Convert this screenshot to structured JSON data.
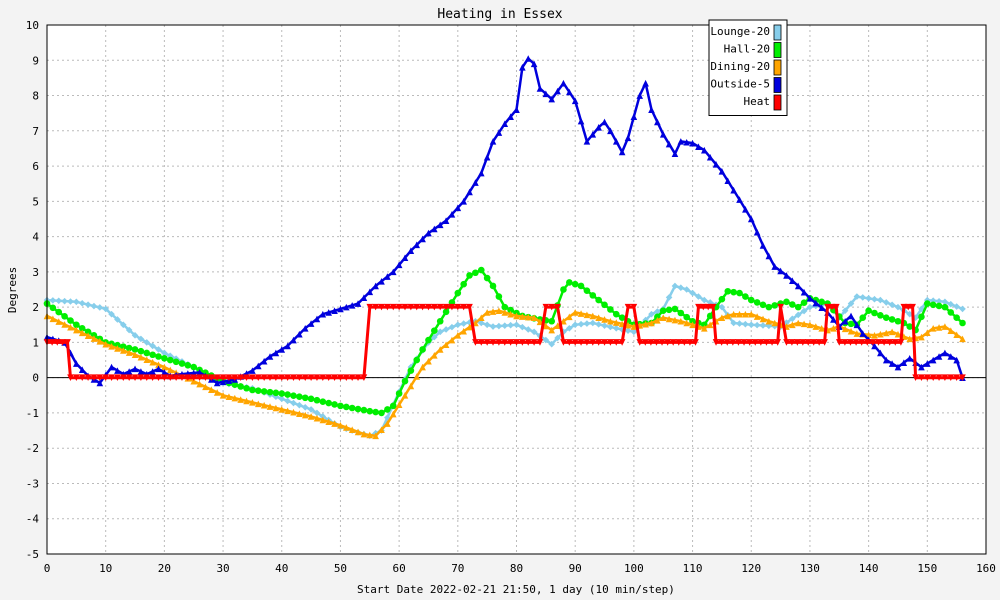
{
  "chart_data": {
    "type": "line",
    "title": "Heating in Essex",
    "xlabel": "Start Date 2022-02-21 21:50, 1 day (10 min/step)",
    "ylabel": "Degrees",
    "xlim": [
      0,
      160
    ],
    "ylim": [
      -5,
      10
    ],
    "xticks": [
      0,
      10,
      20,
      30,
      40,
      50,
      60,
      70,
      80,
      90,
      100,
      110,
      120,
      130,
      140,
      150,
      160
    ],
    "yticks": [
      -5,
      -4,
      -3,
      -2,
      -1,
      0,
      1,
      2,
      3,
      4,
      5,
      6,
      7,
      8,
      9,
      10
    ],
    "grid": true,
    "legend_position": "top-right",
    "series": [
      {
        "name": "Lounge-20",
        "color": "#87ceeb",
        "marker": "diamond",
        "points": [
          [
            0,
            2.2
          ],
          [
            5,
            2.15
          ],
          [
            10,
            1.95
          ],
          [
            15,
            1.2
          ],
          [
            20,
            0.7
          ],
          [
            25,
            0.3
          ],
          [
            30,
            -0.15
          ],
          [
            35,
            -0.3
          ],
          [
            40,
            -0.6
          ],
          [
            45,
            -0.9
          ],
          [
            50,
            -1.4
          ],
          [
            55,
            -1.65
          ],
          [
            57,
            -1.5
          ],
          [
            60,
            -0.4
          ],
          [
            62,
            0.3
          ],
          [
            65,
            1.0
          ],
          [
            67,
            1.3
          ],
          [
            70,
            1.5
          ],
          [
            73,
            1.6
          ],
          [
            76,
            1.45
          ],
          [
            80,
            1.5
          ],
          [
            83,
            1.3
          ],
          [
            86,
            0.95
          ],
          [
            88,
            1.3
          ],
          [
            90,
            1.5
          ],
          [
            93,
            1.55
          ],
          [
            97,
            1.4
          ],
          [
            100,
            1.3
          ],
          [
            103,
            1.8
          ],
          [
            105,
            1.95
          ],
          [
            107,
            2.6
          ],
          [
            109,
            2.5
          ],
          [
            112,
            2.2
          ],
          [
            115,
            2.0
          ],
          [
            117,
            1.55
          ],
          [
            120,
            1.5
          ],
          [
            125,
            1.45
          ],
          [
            130,
            2.0
          ],
          [
            133,
            2.1
          ],
          [
            135,
            1.7
          ],
          [
            138,
            2.3
          ],
          [
            142,
            2.2
          ],
          [
            145,
            2.0
          ],
          [
            148,
            1.7
          ],
          [
            150,
            2.2
          ],
          [
            153,
            2.15
          ],
          [
            156,
            1.95
          ]
        ]
      },
      {
        "name": "Hall-20",
        "color": "#00ee00",
        "marker": "circle",
        "points": [
          [
            0,
            2.1
          ],
          [
            5,
            1.5
          ],
          [
            10,
            1.0
          ],
          [
            15,
            0.8
          ],
          [
            20,
            0.55
          ],
          [
            25,
            0.3
          ],
          [
            30,
            -0.1
          ],
          [
            35,
            -0.35
          ],
          [
            40,
            -0.45
          ],
          [
            45,
            -0.6
          ],
          [
            50,
            -0.8
          ],
          [
            55,
            -0.95
          ],
          [
            57,
            -1.0
          ],
          [
            59,
            -0.8
          ],
          [
            61,
            -0.1
          ],
          [
            64,
            0.8
          ],
          [
            67,
            1.6
          ],
          [
            70,
            2.4
          ],
          [
            72,
            2.9
          ],
          [
            74,
            3.05
          ],
          [
            76,
            2.6
          ],
          [
            78,
            2.0
          ],
          [
            81,
            1.75
          ],
          [
            84,
            1.65
          ],
          [
            86,
            1.6
          ],
          [
            88,
            2.5
          ],
          [
            89,
            2.7
          ],
          [
            91,
            2.6
          ],
          [
            94,
            2.2
          ],
          [
            97,
            1.8
          ],
          [
            100,
            1.5
          ],
          [
            103,
            1.55
          ],
          [
            105,
            1.9
          ],
          [
            107,
            1.95
          ],
          [
            110,
            1.6
          ],
          [
            112,
            1.5
          ],
          [
            114,
            2.0
          ],
          [
            116,
            2.45
          ],
          [
            118,
            2.4
          ],
          [
            120,
            2.2
          ],
          [
            123,
            2.0
          ],
          [
            126,
            2.15
          ],
          [
            128,
            2.0
          ],
          [
            130,
            2.25
          ],
          [
            133,
            2.1
          ],
          [
            136,
            1.55
          ],
          [
            138,
            1.5
          ],
          [
            140,
            1.9
          ],
          [
            143,
            1.7
          ],
          [
            146,
            1.55
          ],
          [
            148,
            1.35
          ],
          [
            150,
            2.1
          ],
          [
            153,
            2.0
          ],
          [
            156,
            1.55
          ]
        ]
      },
      {
        "name": "Dining-20",
        "color": "#ffa500",
        "marker": "triangle",
        "points": [
          [
            0,
            1.75
          ],
          [
            5,
            1.35
          ],
          [
            10,
            0.95
          ],
          [
            15,
            0.65
          ],
          [
            20,
            0.3
          ],
          [
            25,
            -0.1
          ],
          [
            30,
            -0.5
          ],
          [
            35,
            -0.7
          ],
          [
            40,
            -0.9
          ],
          [
            45,
            -1.1
          ],
          [
            50,
            -1.35
          ],
          [
            54,
            -1.6
          ],
          [
            56,
            -1.65
          ],
          [
            58,
            -1.3
          ],
          [
            61,
            -0.5
          ],
          [
            64,
            0.3
          ],
          [
            67,
            0.8
          ],
          [
            70,
            1.2
          ],
          [
            73,
            1.55
          ],
          [
            75,
            1.85
          ],
          [
            77,
            1.9
          ],
          [
            80,
            1.75
          ],
          [
            83,
            1.7
          ],
          [
            86,
            1.35
          ],
          [
            88,
            1.6
          ],
          [
            90,
            1.85
          ],
          [
            93,
            1.75
          ],
          [
            96,
            1.6
          ],
          [
            100,
            1.45
          ],
          [
            103,
            1.55
          ],
          [
            105,
            1.7
          ],
          [
            108,
            1.6
          ],
          [
            112,
            1.4
          ],
          [
            115,
            1.7
          ],
          [
            117,
            1.8
          ],
          [
            120,
            1.8
          ],
          [
            123,
            1.6
          ],
          [
            126,
            1.45
          ],
          [
            128,
            1.55
          ],
          [
            130,
            1.5
          ],
          [
            133,
            1.35
          ],
          [
            135,
            1.45
          ],
          [
            138,
            1.25
          ],
          [
            141,
            1.2
          ],
          [
            144,
            1.3
          ],
          [
            147,
            1.1
          ],
          [
            149,
            1.15
          ],
          [
            151,
            1.4
          ],
          [
            153,
            1.45
          ],
          [
            156,
            1.1
          ]
        ]
      },
      {
        "name": "Outside-5",
        "color": "#0000dd",
        "marker": "triangle",
        "points": [
          [
            0,
            1.15
          ],
          [
            3,
            1.0
          ],
          [
            5,
            0.4
          ],
          [
            7,
            0.05
          ],
          [
            9,
            -0.15
          ],
          [
            11,
            0.3
          ],
          [
            13,
            0.1
          ],
          [
            15,
            0.25
          ],
          [
            17,
            0.1
          ],
          [
            19,
            0.25
          ],
          [
            21,
            0.05
          ],
          [
            23,
            0.1
          ],
          [
            26,
            0.15
          ],
          [
            29,
            -0.15
          ],
          [
            32,
            -0.05
          ],
          [
            35,
            0.2
          ],
          [
            38,
            0.6
          ],
          [
            41,
            0.9
          ],
          [
            44,
            1.4
          ],
          [
            47,
            1.8
          ],
          [
            50,
            1.95
          ],
          [
            53,
            2.1
          ],
          [
            56,
            2.6
          ],
          [
            59,
            3.0
          ],
          [
            62,
            3.6
          ],
          [
            65,
            4.1
          ],
          [
            68,
            4.45
          ],
          [
            71,
            5.0
          ],
          [
            74,
            5.8
          ],
          [
            76,
            6.7
          ],
          [
            78,
            7.2
          ],
          [
            80,
            7.6
          ],
          [
            81,
            8.8
          ],
          [
            82,
            9.05
          ],
          [
            83,
            8.9
          ],
          [
            84,
            8.2
          ],
          [
            86,
            7.9
          ],
          [
            88,
            8.35
          ],
          [
            90,
            7.85
          ],
          [
            92,
            6.7
          ],
          [
            94,
            7.1
          ],
          [
            95,
            7.25
          ],
          [
            96,
            7.0
          ],
          [
            98,
            6.4
          ],
          [
            99,
            6.8
          ],
          [
            101,
            8.0
          ],
          [
            102,
            8.35
          ],
          [
            103,
            7.6
          ],
          [
            105,
            6.9
          ],
          [
            107,
            6.35
          ],
          [
            108,
            6.7
          ],
          [
            110,
            6.65
          ],
          [
            112,
            6.45
          ],
          [
            115,
            5.85
          ],
          [
            118,
            5.05
          ],
          [
            120,
            4.5
          ],
          [
            122,
            3.75
          ],
          [
            124,
            3.15
          ],
          [
            126,
            2.9
          ],
          [
            128,
            2.6
          ],
          [
            130,
            2.25
          ],
          [
            133,
            1.85
          ],
          [
            135,
            1.45
          ],
          [
            137,
            1.75
          ],
          [
            139,
            1.25
          ],
          [
            141,
            0.9
          ],
          [
            143,
            0.5
          ],
          [
            145,
            0.3
          ],
          [
            147,
            0.55
          ],
          [
            149,
            0.3
          ],
          [
            151,
            0.5
          ],
          [
            153,
            0.7
          ],
          [
            155,
            0.5
          ],
          [
            156,
            0.0
          ]
        ]
      },
      {
        "name": "Heat",
        "color": "#ff0000",
        "marker": "triangle-down",
        "points": [
          [
            0,
            1
          ],
          [
            3.5,
            1
          ],
          [
            4,
            0
          ],
          [
            54,
            0
          ],
          [
            55,
            2
          ],
          [
            72,
            2
          ],
          [
            73,
            1
          ],
          [
            84,
            1
          ],
          [
            85,
            2
          ],
          [
            87,
            2
          ],
          [
            88,
            1
          ],
          [
            98,
            1
          ],
          [
            99,
            2
          ],
          [
            100,
            2
          ],
          [
            101,
            1
          ],
          [
            110.5,
            1
          ],
          [
            111,
            2
          ],
          [
            113.5,
            2
          ],
          [
            114,
            1
          ],
          [
            124.5,
            1
          ],
          [
            125,
            2
          ],
          [
            126,
            1
          ],
          [
            132.5,
            1
          ],
          [
            133,
            2
          ],
          [
            134.5,
            2
          ],
          [
            135,
            1
          ],
          [
            145.5,
            1
          ],
          [
            146,
            2
          ],
          [
            147.5,
            2
          ],
          [
            148,
            0
          ],
          [
            156,
            0
          ]
        ]
      }
    ]
  }
}
